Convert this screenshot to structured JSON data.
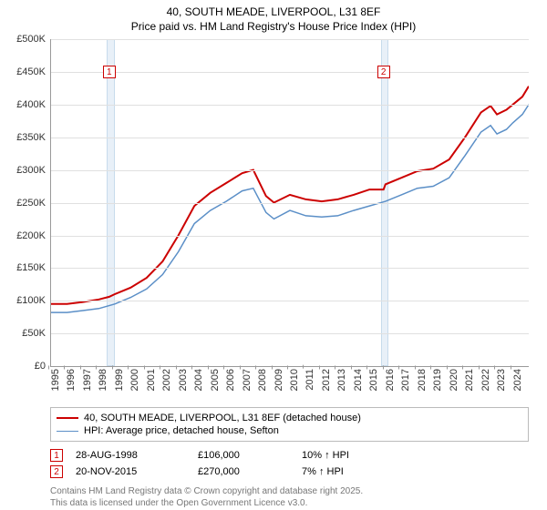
{
  "title": {
    "line1": "40, SOUTH MEADE, LIVERPOOL, L31 8EF",
    "line2": "Price paid vs. HM Land Registry's House Price Index (HPI)"
  },
  "chart": {
    "type": "line",
    "background_color": "#ffffff",
    "grid_color": "#e0e0e0",
    "axis_color": "#999999",
    "x": {
      "min": 1995,
      "max": 2025,
      "ticks": [
        1995,
        1996,
        1997,
        1998,
        1999,
        2000,
        2001,
        2002,
        2003,
        2004,
        2005,
        2006,
        2007,
        2008,
        2009,
        2010,
        2011,
        2012,
        2013,
        2014,
        2015,
        2016,
        2017,
        2018,
        2019,
        2020,
        2021,
        2022,
        2023,
        2024
      ],
      "label_fontsize": 11
    },
    "y": {
      "min": 0,
      "max": 500000,
      "tick_step": 50000,
      "tick_labels": [
        "£0",
        "£50K",
        "£100K",
        "£150K",
        "£200K",
        "£250K",
        "£300K",
        "£350K",
        "£400K",
        "£450K",
        "£500K"
      ],
      "label_fontsize": 11
    },
    "highlight_bands": [
      {
        "from": 1998.5,
        "to": 1999.0
      },
      {
        "from": 2015.7,
        "to": 2016.2
      }
    ],
    "markers": [
      {
        "n": "1",
        "x": 1998.65,
        "y": 460000
      },
      {
        "n": "2",
        "x": 2015.88,
        "y": 460000
      }
    ],
    "series": [
      {
        "name": "40, SOUTH MEADE, LIVERPOOL, L31 8EF (detached house)",
        "color": "#cc0000",
        "line_width": 2,
        "points": [
          [
            1995,
            95000
          ],
          [
            1996,
            95000
          ],
          [
            1997,
            98000
          ],
          [
            1998,
            102000
          ],
          [
            1998.65,
            106000
          ],
          [
            1999,
            110000
          ],
          [
            2000,
            120000
          ],
          [
            2001,
            135000
          ],
          [
            2002,
            160000
          ],
          [
            2003,
            200000
          ],
          [
            2004,
            245000
          ],
          [
            2005,
            265000
          ],
          [
            2006,
            280000
          ],
          [
            2007,
            295000
          ],
          [
            2007.7,
            300000
          ],
          [
            2008,
            285000
          ],
          [
            2008.5,
            260000
          ],
          [
            2009,
            250000
          ],
          [
            2010,
            262000
          ],
          [
            2011,
            255000
          ],
          [
            2012,
            252000
          ],
          [
            2013,
            255000
          ],
          [
            2014,
            262000
          ],
          [
            2015,
            270000
          ],
          [
            2015.88,
            270000
          ],
          [
            2016,
            278000
          ],
          [
            2017,
            288000
          ],
          [
            2018,
            298000
          ],
          [
            2019,
            302000
          ],
          [
            2020,
            316000
          ],
          [
            2021,
            350000
          ],
          [
            2022,
            388000
          ],
          [
            2022.6,
            398000
          ],
          [
            2023,
            385000
          ],
          [
            2023.6,
            392000
          ],
          [
            2024,
            400000
          ],
          [
            2024.6,
            412000
          ],
          [
            2025,
            428000
          ]
        ]
      },
      {
        "name": "HPI: Average price, detached house, Sefton",
        "color": "#5b8fc7",
        "line_width": 1.5,
        "points": [
          [
            1995,
            82000
          ],
          [
            1996,
            82000
          ],
          [
            1997,
            85000
          ],
          [
            1998,
            88000
          ],
          [
            1999,
            95000
          ],
          [
            2000,
            105000
          ],
          [
            2001,
            118000
          ],
          [
            2002,
            140000
          ],
          [
            2003,
            175000
          ],
          [
            2004,
            218000
          ],
          [
            2005,
            238000
          ],
          [
            2006,
            252000
          ],
          [
            2007,
            268000
          ],
          [
            2007.7,
            272000
          ],
          [
            2008,
            258000
          ],
          [
            2008.5,
            235000
          ],
          [
            2009,
            225000
          ],
          [
            2010,
            238000
          ],
          [
            2011,
            230000
          ],
          [
            2012,
            228000
          ],
          [
            2013,
            230000
          ],
          [
            2014,
            238000
          ],
          [
            2015,
            245000
          ],
          [
            2016,
            252000
          ],
          [
            2017,
            262000
          ],
          [
            2018,
            272000
          ],
          [
            2019,
            275000
          ],
          [
            2020,
            288000
          ],
          [
            2021,
            322000
          ],
          [
            2022,
            358000
          ],
          [
            2022.6,
            368000
          ],
          [
            2023,
            355000
          ],
          [
            2023.6,
            362000
          ],
          [
            2024,
            372000
          ],
          [
            2024.6,
            385000
          ],
          [
            2025,
            400000
          ]
        ]
      }
    ]
  },
  "legend": {
    "items": [
      {
        "label": "40, SOUTH MEADE, LIVERPOOL, L31 8EF (detached house)",
        "color": "#cc0000",
        "width": 2
      },
      {
        "label": "HPI: Average price, detached house, Sefton",
        "color": "#5b8fc7",
        "width": 1.5
      }
    ]
  },
  "sales": [
    {
      "n": "1",
      "date": "28-AUG-1998",
      "price": "£106,000",
      "diff": "10% ↑ HPI"
    },
    {
      "n": "2",
      "date": "20-NOV-2015",
      "price": "£270,000",
      "diff": "7% ↑ HPI"
    }
  ],
  "footer": {
    "line1": "Contains HM Land Registry data © Crown copyright and database right 2025.",
    "line2": "This data is licensed under the Open Government Licence v3.0."
  }
}
